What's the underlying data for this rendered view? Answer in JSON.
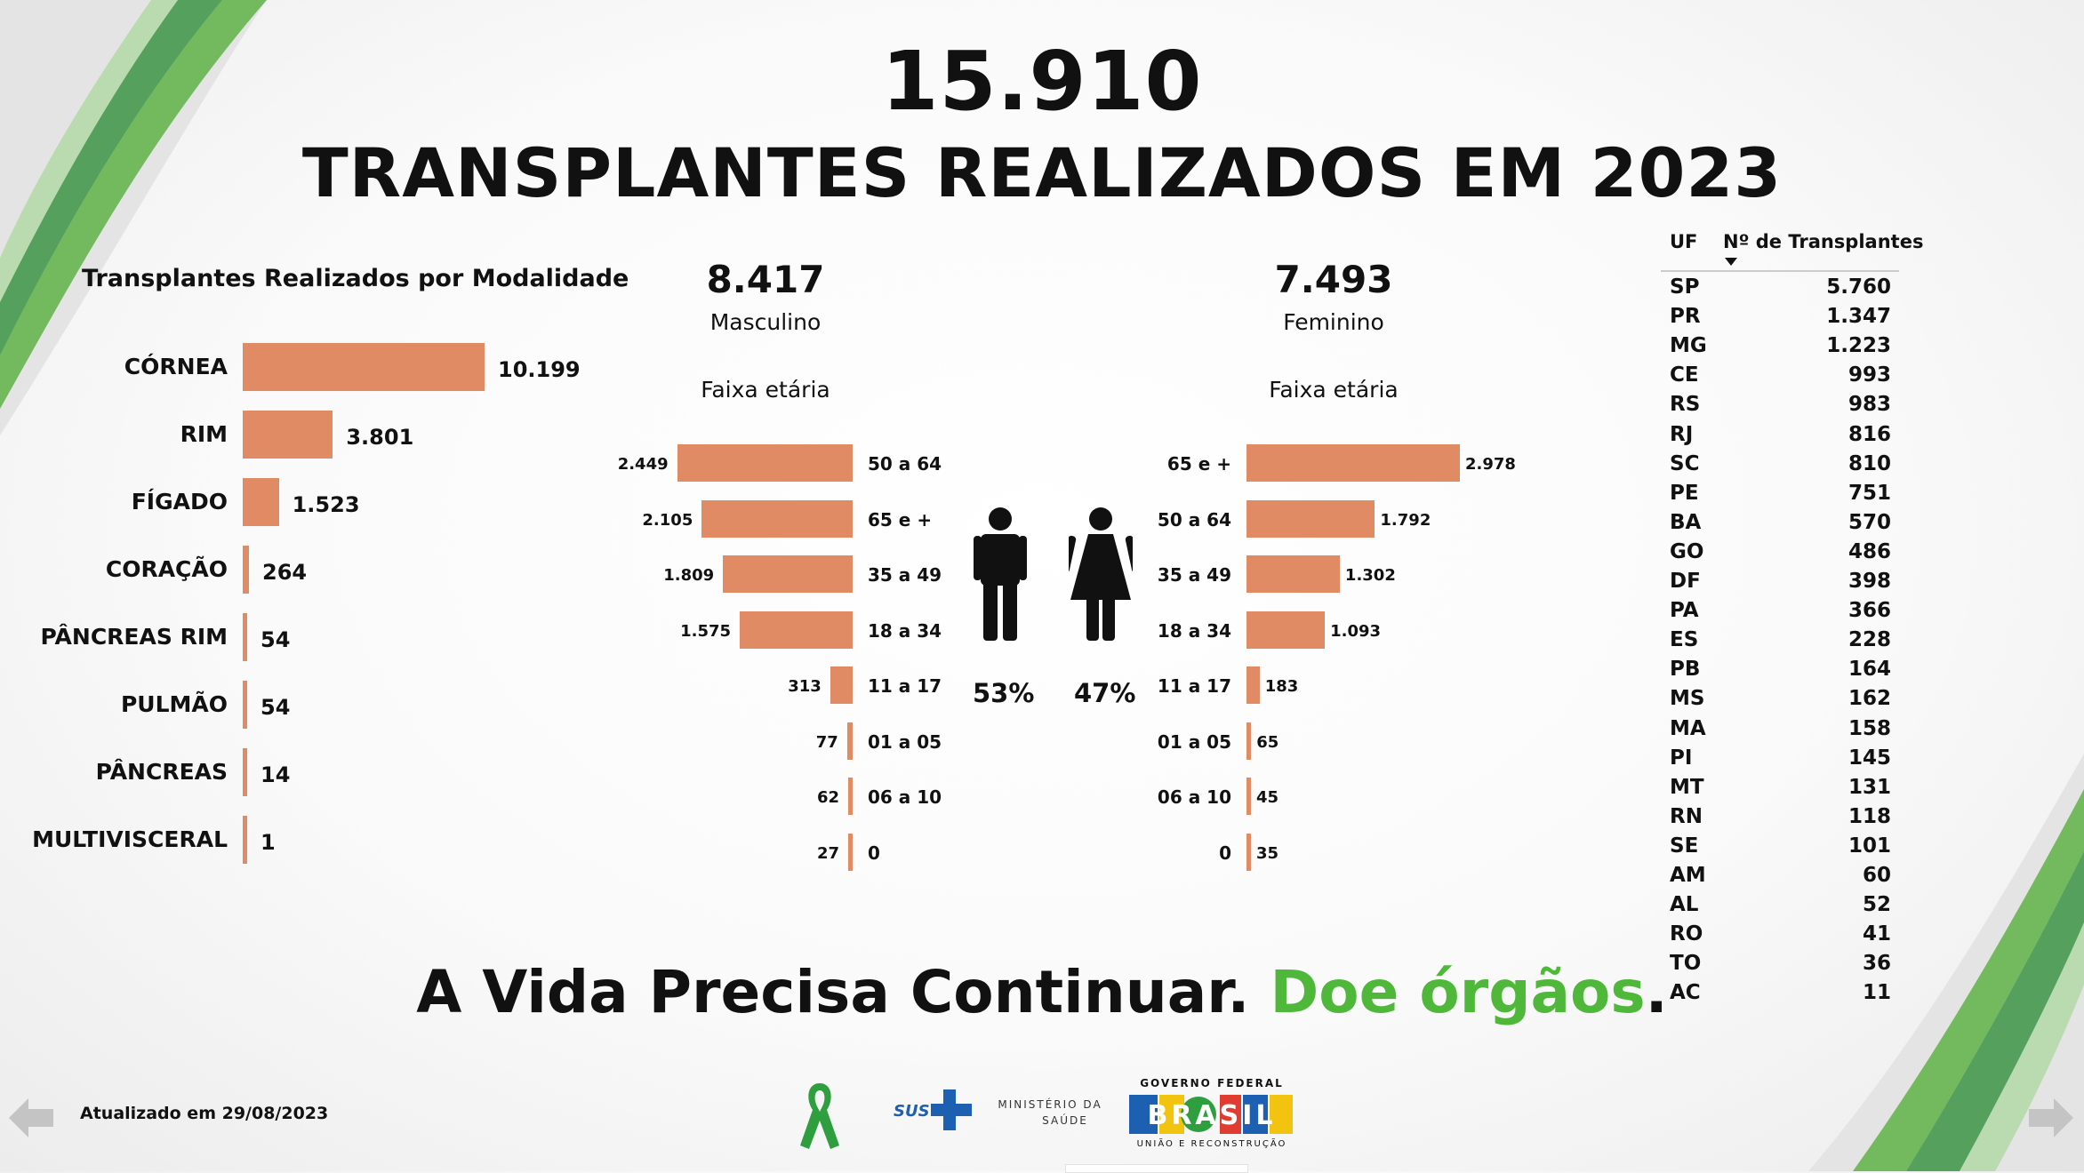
{
  "header": {
    "total": "15.910",
    "title": "TRANSPLANTES REALIZADOS EM 2023"
  },
  "modality": {
    "title": "Transplantes Realizados por Modalidade",
    "items": [
      {
        "label": "CÓRNEA",
        "value": 10199,
        "display": "10.199"
      },
      {
        "label": "RIM",
        "value": 3801,
        "display": "3.801"
      },
      {
        "label": "FÍGADO",
        "value": 1523,
        "display": "1.523"
      },
      {
        "label": "CORAÇÃO",
        "value": 264,
        "display": "264"
      },
      {
        "label": "PÂNCREAS RIM",
        "value": 54,
        "display": "54"
      },
      {
        "label": "PULMÃO",
        "value": 54,
        "display": "54"
      },
      {
        "label": "PÂNCREAS",
        "value": 14,
        "display": "14"
      },
      {
        "label": "MULTIVISCERAL",
        "value": 1,
        "display": "1"
      }
    ]
  },
  "male": {
    "count": "8.417",
    "label": "Masculino",
    "age_title": "Faixa etária",
    "percent": "53%",
    "ages": [
      {
        "label": "50 a 64",
        "value": 2449,
        "display": "2.449"
      },
      {
        "label": "65 e +",
        "value": 2105,
        "display": "2.105"
      },
      {
        "label": "35 a 49",
        "value": 1809,
        "display": "1.809"
      },
      {
        "label": "18 a 34",
        "value": 1575,
        "display": "1.575"
      },
      {
        "label": "11 a 17",
        "value": 313,
        "display": "313"
      },
      {
        "label": "01 a 05",
        "value": 77,
        "display": "77"
      },
      {
        "label": "06 a 10",
        "value": 62,
        "display": "62"
      },
      {
        "label": "0",
        "value": 27,
        "display": "27"
      }
    ]
  },
  "female": {
    "count": "7.493",
    "label": "Feminino",
    "age_title": "Faixa etária",
    "percent": "47%",
    "ages": [
      {
        "label": "65 e +",
        "value": 2978,
        "display": "2.978"
      },
      {
        "label": "50 a 64",
        "value": 1792,
        "display": "1.792"
      },
      {
        "label": "35 a 49",
        "value": 1302,
        "display": "1.302"
      },
      {
        "label": "18 a 34",
        "value": 1093,
        "display": "1.093"
      },
      {
        "label": "11 a 17",
        "value": 183,
        "display": "183"
      },
      {
        "label": "01 a 05",
        "value": 65,
        "display": "65"
      },
      {
        "label": "06 a 10",
        "value": 45,
        "display": "45"
      },
      {
        "label": "0",
        "value": 35,
        "display": "35"
      }
    ]
  },
  "uf_table": {
    "col_uf": "UF",
    "col_count": "Nº de Transplantes",
    "rows": [
      {
        "uf": "SP",
        "value": "5.760"
      },
      {
        "uf": "PR",
        "value": "1.347"
      },
      {
        "uf": "MG",
        "value": "1.223"
      },
      {
        "uf": "CE",
        "value": "993"
      },
      {
        "uf": "RS",
        "value": "983"
      },
      {
        "uf": "RJ",
        "value": "816"
      },
      {
        "uf": "SC",
        "value": "810"
      },
      {
        "uf": "PE",
        "value": "751"
      },
      {
        "uf": "BA",
        "value": "570"
      },
      {
        "uf": "GO",
        "value": "486"
      },
      {
        "uf": "DF",
        "value": "398"
      },
      {
        "uf": "PA",
        "value": "366"
      },
      {
        "uf": "ES",
        "value": "228"
      },
      {
        "uf": "PB",
        "value": "164"
      },
      {
        "uf": "MS",
        "value": "162"
      },
      {
        "uf": "MA",
        "value": "158"
      },
      {
        "uf": "PI",
        "value": "145"
      },
      {
        "uf": "MT",
        "value": "131"
      },
      {
        "uf": "RN",
        "value": "118"
      },
      {
        "uf": "SE",
        "value": "101"
      },
      {
        "uf": "AM",
        "value": "60"
      },
      {
        "uf": "AL",
        "value": "52"
      },
      {
        "uf": "RO",
        "value": "41"
      },
      {
        "uf": "TO",
        "value": "36"
      },
      {
        "uf": "AC",
        "value": "11"
      }
    ]
  },
  "slogan": {
    "part1": "A Vida Precisa Continuar. ",
    "part2": "Doe órgãos",
    "part3": "."
  },
  "footer": {
    "updated": "Atualizado em 29/08/2023",
    "sus": "SUS",
    "ministry_line1": "MINISTÉRIO DA",
    "ministry_line2": "SAÚDE",
    "gov_top": "GOVERNO FEDERAL",
    "gov_brand": "BRASIL",
    "gov_bottom": "UNIÃO E RECONSTRUÇÃO"
  },
  "colors": {
    "bar": "#e08b64",
    "accent_green": "#4fb83a",
    "ribbon_green": "#2e9e3f"
  },
  "icons": [
    "green-ribbon-icon",
    "male-person-icon",
    "female-person-icon",
    "back-arrow-icon",
    "forward-arrow-icon",
    "sort-desc-icon"
  ],
  "chart_data": [
    {
      "type": "bar",
      "title": "Transplantes Realizados por Modalidade",
      "categories": [
        "CÓRNEA",
        "RIM",
        "FÍGADO",
        "CORAÇÃO",
        "PÂNCREAS RIM",
        "PULMÃO",
        "PÂNCREAS",
        "MULTIVISCERAL"
      ],
      "values": [
        10199,
        3801,
        1523,
        264,
        54,
        54,
        14,
        1
      ]
    },
    {
      "type": "bar",
      "title": "Masculino",
      "categories": [
        "50 a 64",
        "65 e +",
        "35 a 49",
        "18 a 34",
        "11 a 17",
        "01 a 05",
        "06 a 10",
        "0"
      ],
      "values": [
        2449,
        2105,
        1809,
        1575,
        313,
        77,
        62,
        27
      ]
    },
    {
      "type": "bar",
      "title": "Feminino",
      "categories": [
        "65 e +",
        "50 a 64",
        "35 a 49",
        "18 a 34",
        "11 a 17",
        "01 a 05",
        "06 a 10",
        "0"
      ],
      "values": [
        2978,
        1792,
        1302,
        1093,
        183,
        65,
        45,
        35
      ]
    },
    {
      "type": "table",
      "columns": [
        "UF",
        "Nº de Transplantes"
      ],
      "rows": [
        [
          "SP",
          "5.760"
        ],
        [
          "PR",
          "1.347"
        ],
        [
          "MG",
          "1.223"
        ],
        [
          "CE",
          "993"
        ],
        [
          "RS",
          "983"
        ],
        [
          "RJ",
          "816"
        ],
        [
          "SC",
          "810"
        ],
        [
          "PE",
          "751"
        ],
        [
          "BA",
          "570"
        ],
        [
          "GO",
          "486"
        ],
        [
          "DF",
          "398"
        ],
        [
          "PA",
          "366"
        ],
        [
          "ES",
          "228"
        ],
        [
          "PB",
          "164"
        ],
        [
          "MS",
          "162"
        ],
        [
          "MA",
          "158"
        ],
        [
          "PI",
          "145"
        ],
        [
          "MT",
          "131"
        ],
        [
          "RN",
          "118"
        ],
        [
          "SE",
          "101"
        ],
        [
          "AM",
          "60"
        ],
        [
          "AL",
          "52"
        ],
        [
          "RO",
          "41"
        ],
        [
          "TO",
          "36"
        ],
        [
          "AC",
          "11"
        ]
      ]
    }
  ]
}
